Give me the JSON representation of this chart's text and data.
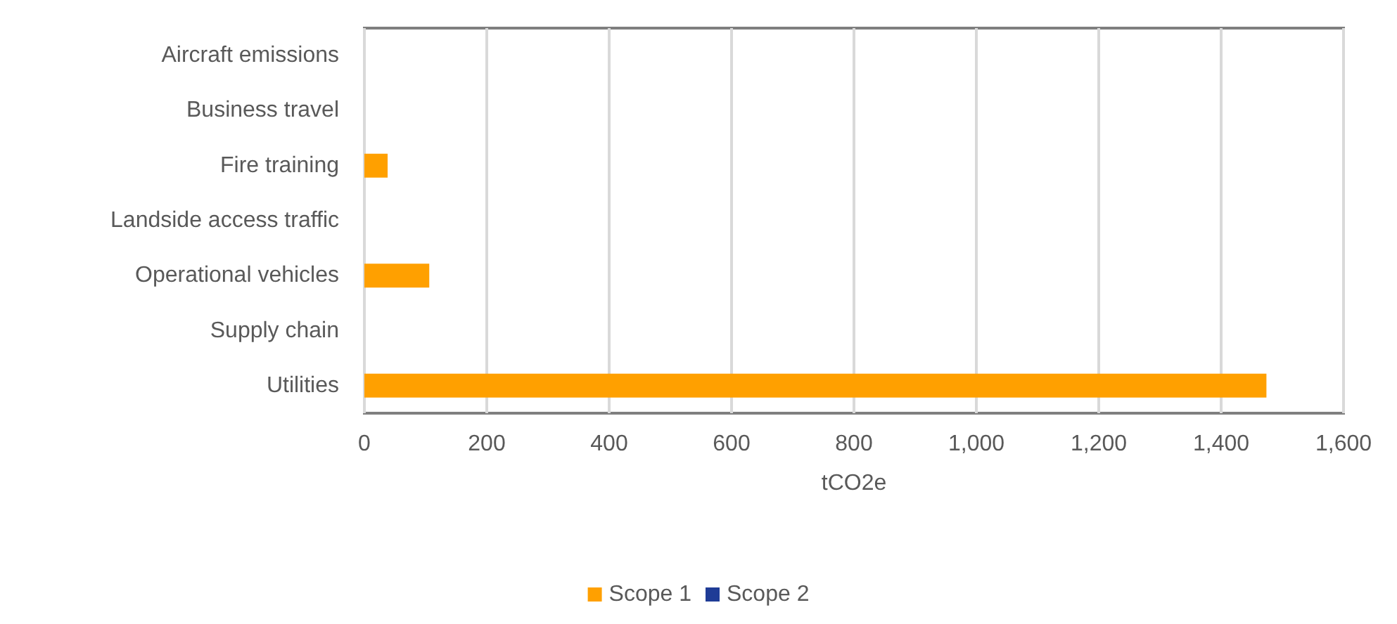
{
  "chart_data": {
    "type": "bar",
    "orientation": "horizontal",
    "stacked": true,
    "categories": [
      "Aircraft emissions",
      "Business travel",
      "Fire training",
      "Landside access traffic",
      "Operational vehicles",
      "Supply chain",
      "Utilities"
    ],
    "series": [
      {
        "name": "Scope 1",
        "color": "#ffa000",
        "values": [
          0,
          0,
          38,
          0,
          106,
          0,
          1474
        ]
      },
      {
        "name": "Scope 2",
        "color": "#1f3c96",
        "values": [
          0,
          0,
          0,
          0,
          0,
          0,
          0
        ]
      }
    ],
    "xlabel": "tCO2e",
    "xlim": [
      0,
      1600
    ],
    "xticks": [
      0,
      200,
      400,
      600,
      800,
      {
        "value": 1000,
        "label": "1,000"
      },
      {
        "value": 1200,
        "label": "1,200"
      },
      {
        "value": 1400,
        "label": "1,400"
      },
      {
        "value": 1600,
        "label": "1,600"
      }
    ],
    "grid": "x",
    "legend": "bottom"
  }
}
